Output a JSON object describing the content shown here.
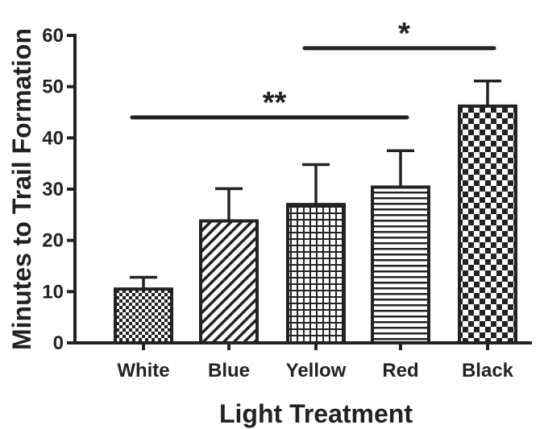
{
  "chart_data": {
    "type": "bar",
    "title": "",
    "xlabel": "Light Treatment",
    "ylabel": "Minutes to Trail Formation",
    "ylim": [
      0,
      60
    ],
    "yticks": [
      0,
      10,
      20,
      30,
      40,
      50,
      60
    ],
    "categories": [
      "White",
      "Blue",
      "Yellow",
      "Red",
      "Black"
    ],
    "values": [
      10.5,
      23.8,
      27.0,
      30.4,
      46.2
    ],
    "errors": [
      2.3,
      6.3,
      7.8,
      7.1,
      4.9
    ],
    "patterns": [
      "fine-checker",
      "diagonal-stripes",
      "grid",
      "horizontal-stripes",
      "checker"
    ],
    "significance": [
      {
        "from": "White",
        "to": "Red",
        "y": 44,
        "label": "**"
      },
      {
        "from": "Yellow",
        "to": "Black",
        "y": 57.5,
        "label": "*"
      }
    ],
    "grid": false,
    "colors": {
      "ink": "#222222",
      "background": "#ffffff"
    }
  }
}
